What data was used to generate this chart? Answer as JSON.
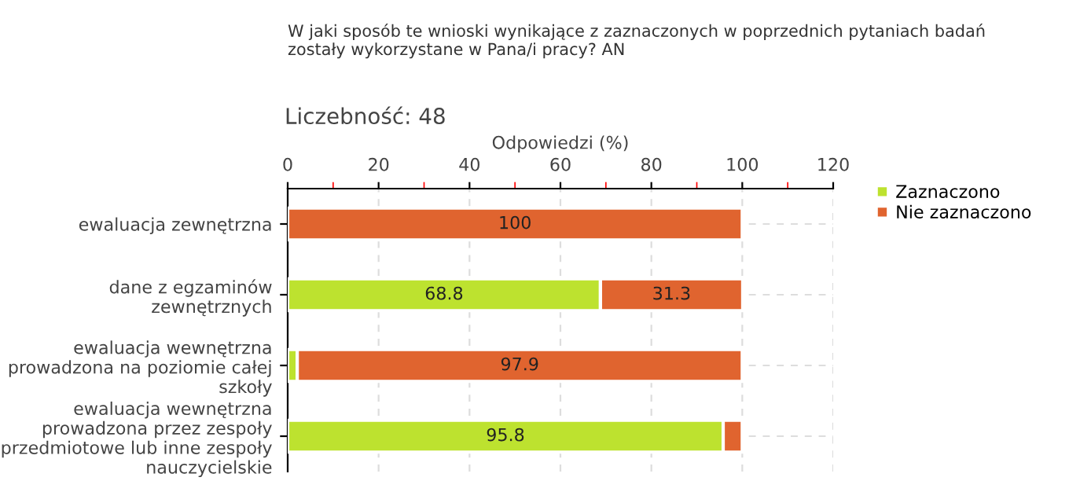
{
  "chart_data": {
    "type": "bar",
    "orientation": "horizontal",
    "stacked": true,
    "title": "W jaki sposób te wnioski wynikające z zaznaczonych w poprzednich pytaniach badań\nzostały wykorzystane w Pana/i pracy? AN",
    "subtitle": "Liczebność: 48",
    "xlabel": "Odpowiedzi (%)",
    "categories": [
      "ewaluacja zewnętrzna",
      "dane z egzaminów\nzewnętrznych",
      "ewaluacja wewnętrzna\nprowadzona na poziomie całej\nszkoły",
      "ewaluacja wewnętrzna\nprowadzona przez zespoły\nprzedmiotowe lub inne zespoły\nnauczycielskie"
    ],
    "series": [
      {
        "name": "Zaznaczono",
        "color": "#bde22f",
        "values": [
          0,
          68.8,
          2.1,
          95.8
        ],
        "value_labels": [
          null,
          "68.8",
          null,
          "95.8"
        ]
      },
      {
        "name": "Nie zaznaczono",
        "color": "#e0642f",
        "values": [
          100,
          31.3,
          97.9,
          4.2
        ],
        "value_labels": [
          "100",
          "31.3",
          "97.9",
          null
        ]
      }
    ],
    "xlim": [
      0,
      120
    ],
    "xticks": [
      0,
      {
        "value": 10,
        "label": null
      },
      20,
      {
        "value": 30,
        "label": null
      },
      40,
      {
        "value": 50,
        "label": null
      },
      60,
      {
        "value": 70,
        "label": null
      },
      80,
      {
        "value": 90,
        "label": null
      },
      100,
      {
        "value": 110,
        "label": null
      },
      120
    ],
    "grid": true,
    "legend": "top right"
  }
}
